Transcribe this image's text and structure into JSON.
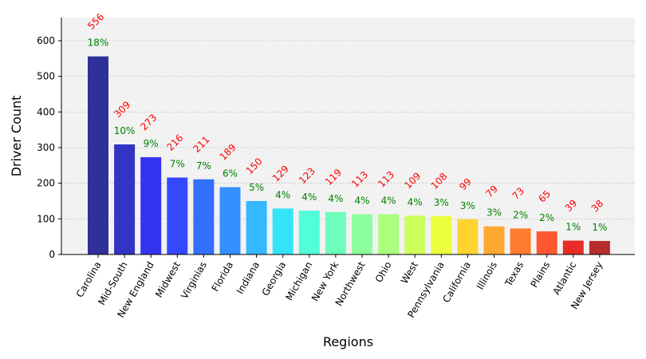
{
  "chart_data": {
    "type": "bar",
    "title": "",
    "xlabel": "Regions",
    "ylabel": "Driver Count",
    "ylim": [
      0,
      665
    ],
    "yticks": [
      0,
      100,
      200,
      300,
      400,
      500,
      600
    ],
    "grid": true,
    "categories": [
      "Carolina",
      "Mid-South",
      "New England",
      "Midwest",
      "Virginias",
      "Florida",
      "Indiana",
      "Georgia",
      "Michigan",
      "New York",
      "Northwest",
      "Ohio",
      "West",
      "Pennsylvania",
      "California",
      "Illinois",
      "Texas",
      "Plains",
      "Atlantic",
      "New Jersey"
    ],
    "values": [
      556,
      309,
      273,
      216,
      211,
      189,
      150,
      129,
      123,
      119,
      113,
      113,
      109,
      108,
      99,
      79,
      73,
      65,
      39,
      38
    ],
    "percent_labels": [
      "18%",
      "10%",
      "9%",
      "7%",
      "7%",
      "6%",
      "5%",
      "4%",
      "4%",
      "4%",
      "4%",
      "4%",
      "4%",
      "3%",
      "3%",
      "3%",
      "2%",
      "2%",
      "1%",
      "1%"
    ],
    "value_labels": [
      "556",
      "309",
      "273",
      "216",
      "211",
      "189",
      "150",
      "129",
      "123",
      "119",
      "113",
      "113",
      "109",
      "108",
      "99",
      "79",
      "73",
      "65",
      "39",
      "38"
    ],
    "colors": [
      "#30309a",
      "#3434c4",
      "#3434f0",
      "#3448ff",
      "#3470ff",
      "#3490ff",
      "#34b8ff",
      "#34e4f8",
      "#50ffd8",
      "#6cffbc",
      "#8cff9c",
      "#acff7c",
      "#ccff5c",
      "#ecff3c",
      "#ffd430",
      "#ffa830",
      "#ff7c30",
      "#ff5830",
      "#e82c28",
      "#b82c2c"
    ]
  }
}
